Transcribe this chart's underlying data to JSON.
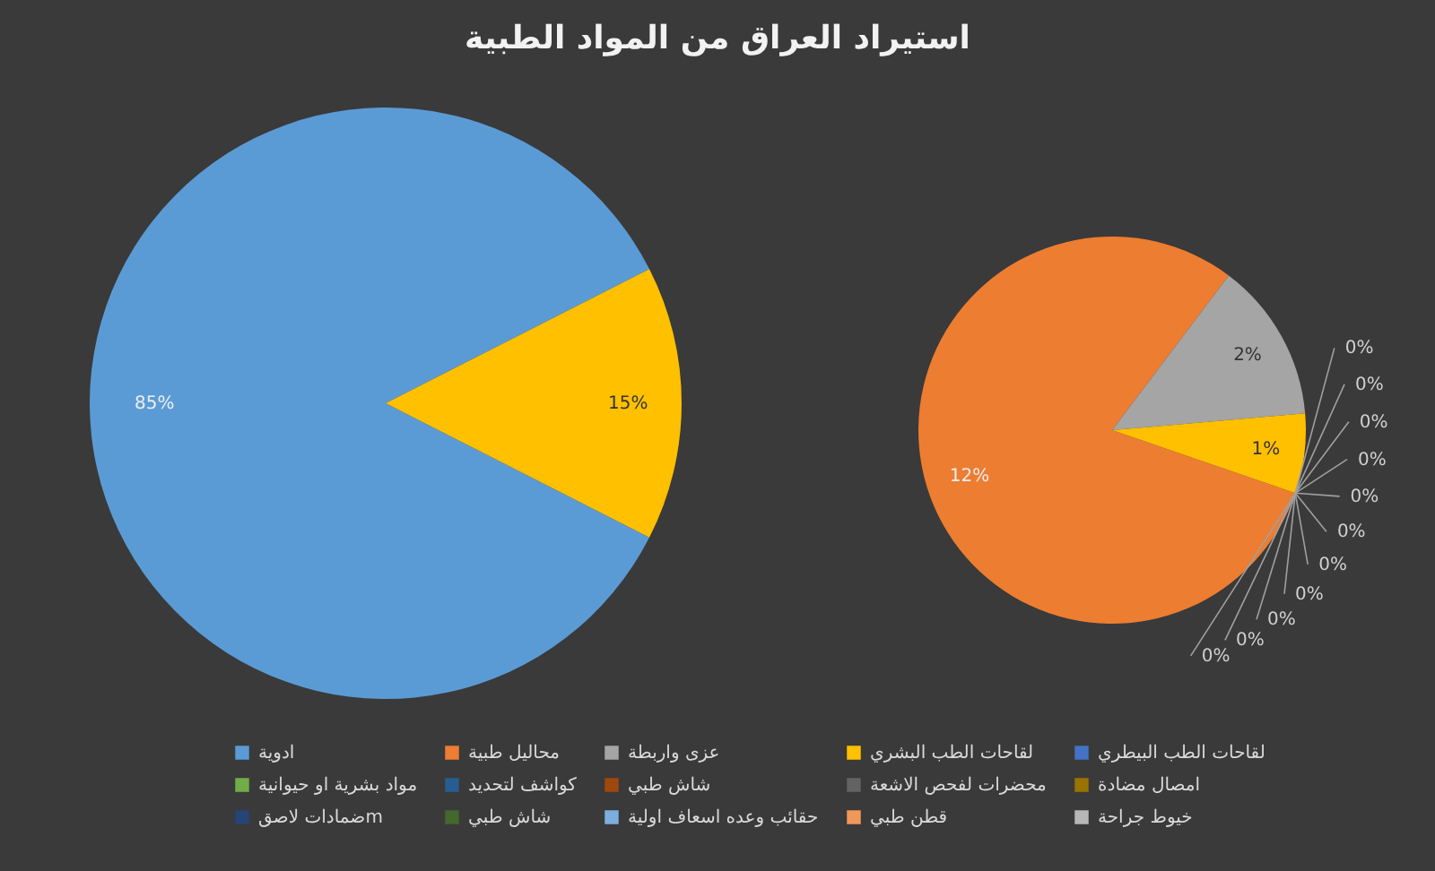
{
  "chart_data": [
    {
      "type": "pie",
      "title": "استيراد العراق من المواد الطبية",
      "categories": [
        "ادوية",
        null
      ],
      "values": [
        85,
        15
      ],
      "colors": [
        "#5b9bd5",
        "#ffc000"
      ],
      "value_labels": [
        "85%",
        "15%"
      ],
      "legend": "bottom"
    },
    {
      "type": "pie",
      "categories": [
        "محاليل طبية",
        "عزى واربطة",
        "لقاحات الطب البشري",
        "لقاحات الطب البيطري",
        "مواد بشرية او حيوانية",
        "كواشف لتحديد",
        "شاش طبي",
        "محضرات لفحص الاشعة",
        "امصال مضادة",
        "ضمادات لاصقm",
        "شاش طبي",
        "حقائب وعده اسعاف اولية",
        "قطن طبي",
        "خيوط جراحة"
      ],
      "values": [
        12,
        2,
        1,
        0,
        0,
        0,
        0,
        0,
        0,
        0,
        0,
        0,
        0,
        0
      ],
      "colors": [
        "#ed7d31",
        "#a5a5a5",
        "#ffc000",
        "#4472c4",
        "#70ad47",
        "#255e91",
        "#9e480e",
        "#636363",
        "#997300",
        "#264478",
        "#43682b",
        "#7cafdd",
        "#f1975a",
        "#b7b7b7"
      ],
      "value_labels": [
        "12%",
        "2%",
        "1%",
        "0%",
        "0%",
        "0%",
        "0%",
        "0%",
        "0%",
        "0%",
        "0%",
        "0%",
        "0%",
        "0%"
      ],
      "legend": "bottom"
    }
  ]
}
